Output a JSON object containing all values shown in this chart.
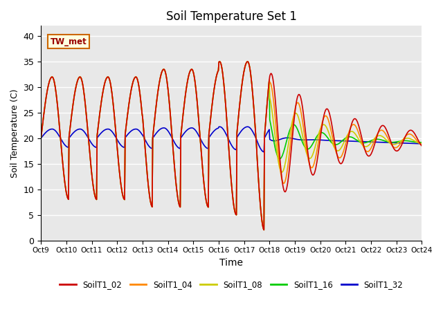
{
  "title": "Soil Temperature Set 1",
  "xlabel": "Time",
  "ylabel": "Soil Temperature (C)",
  "ylim": [
    0,
    42
  ],
  "n_days": 15,
  "n_hours": 720,
  "mean_temp": 20.0,
  "xtick_labels": [
    "Oct 9",
    "Oct 10",
    "Oct 11",
    "Oct 12",
    "Oct 13",
    "Oct 14",
    "Oct 15",
    "Oct 16",
    "Oct 17",
    "Oct 18",
    "Oct 19",
    "Oct 20",
    "Oct 21",
    "Oct 22",
    "Oct 23",
    "Oct 24"
  ],
  "ytick_labels": [
    0,
    5,
    10,
    15,
    20,
    25,
    30,
    35,
    40
  ],
  "series_labels": [
    "SoilT1_02",
    "SoilT1_04",
    "SoilT1_08",
    "SoilT1_16",
    "SoilT1_32"
  ],
  "legend_colors": [
    "#cc0000",
    "#ff8800",
    "#cccc00",
    "#00cc00",
    "#0000cc"
  ],
  "annotation_text": "TW_met",
  "background_color": "#e8e8e8",
  "grid_color": "white"
}
